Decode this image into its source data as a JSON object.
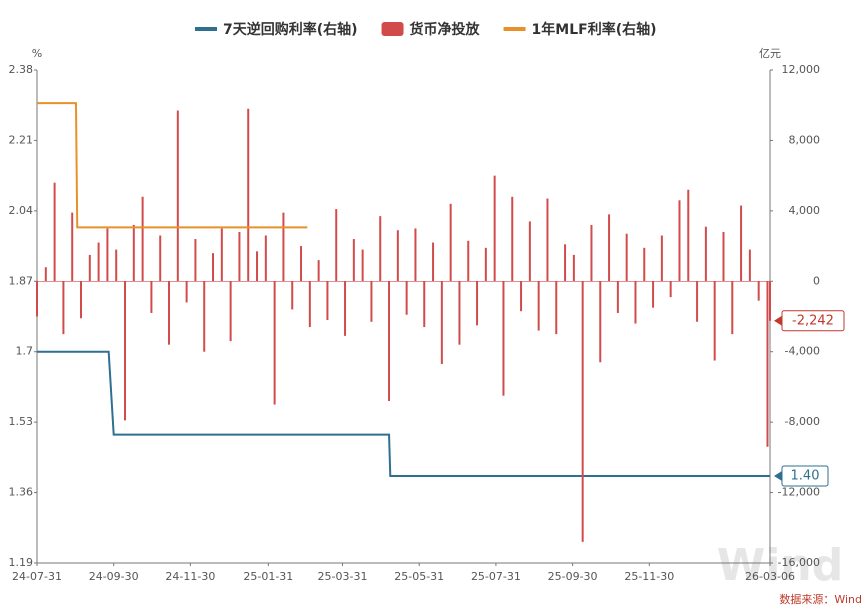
{
  "chart_data": {
    "type": "combo",
    "y_unit": "%",
    "y2_unit": "亿元",
    "source": "数据来源：Wind",
    "watermark": "Wind",
    "xlim": [
      "24-07-31",
      "26-03-06"
    ],
    "xticks": [
      "24-07-31",
      "24-09-30",
      "24-11-30",
      "25-01-31",
      "25-03-31",
      "25-05-31",
      "25-07-31",
      "25-09-30",
      "25-11-30",
      "26-03-06"
    ],
    "ylim": [
      1.19,
      2.38
    ],
    "yticks": [
      2.38,
      2.21,
      2.04,
      1.87,
      1.7,
      1.53,
      1.36,
      1.19
    ],
    "y2lim": [
      -16000,
      12000
    ],
    "y2ticks": [
      {
        "value": 12000,
        "label": "12,000"
      },
      {
        "value": 8000,
        "label": "8,000"
      },
      {
        "value": 4000,
        "label": "4,000"
      },
      0,
      {
        "value": -4000,
        "label": "-4,000"
      },
      {
        "value": -8000,
        "label": "-8,000"
      },
      {
        "value": -12000,
        "label": "-12,000"
      },
      {
        "value": -16000,
        "label": "-16,000"
      }
    ],
    "series": [
      {
        "name": "7天逆回购利率(右轴)",
        "type": "line",
        "color": "#2f6f8f",
        "x": [
          "24-07-31",
          "24-09-26",
          "24-09-30",
          "25-05-07",
          "25-05-08",
          "26-03-06"
        ],
        "values": [
          1.7,
          1.7,
          1.5,
          1.5,
          1.4,
          1.4
        ],
        "value_labels": [
          null,
          null,
          null,
          null,
          null,
          "1.40"
        ]
      },
      {
        "name": "货币净投放",
        "type": "bar",
        "axis": "y2",
        "color": "#d24b4b",
        "x": [
          "24-07-31",
          "24-08-07",
          "24-08-14",
          "24-08-21",
          "24-08-28",
          "24-09-04",
          "24-09-11",
          "24-09-18",
          "24-09-25",
          "24-10-02",
          "24-10-09",
          "24-10-16",
          "24-10-23",
          "24-10-30",
          "24-11-06",
          "24-11-13",
          "24-11-20",
          "24-11-27",
          "24-12-04",
          "24-12-11",
          "24-12-18",
          "24-12-25",
          "25-01-01",
          "25-01-08",
          "25-01-15",
          "25-01-22",
          "25-01-29",
          "25-02-05",
          "25-02-12",
          "25-02-19",
          "25-02-26",
          "25-03-05",
          "25-03-12",
          "25-03-19",
          "25-03-26",
          "25-04-02",
          "25-04-09",
          "25-04-16",
          "25-04-23",
          "25-04-30",
          "25-05-07",
          "25-05-14",
          "25-05-21",
          "25-05-28",
          "25-06-04",
          "25-06-11",
          "25-06-18",
          "25-06-25",
          "25-07-02",
          "25-07-09",
          "25-07-16",
          "25-07-23",
          "25-07-30",
          "25-08-06",
          "25-08-13",
          "25-08-20",
          "25-08-27",
          "25-09-03",
          "25-09-10",
          "25-09-17",
          "25-09-24",
          "25-10-01",
          "25-10-08",
          "25-10-15",
          "25-10-22",
          "25-10-29",
          "25-11-05",
          "25-11-12",
          "25-11-19",
          "25-11-26",
          "25-12-03",
          "25-12-10",
          "25-12-17",
          "25-12-24",
          "25-12-31",
          "26-01-07",
          "26-01-14",
          "26-01-21",
          "26-01-28",
          "26-02-04",
          "26-02-11",
          "26-02-18",
          "26-02-25",
          "26-03-04",
          "26-03-06"
        ],
        "values": [
          -2000,
          800,
          5600,
          -3000,
          3900,
          -2100,
          1500,
          2200,
          3000,
          1800,
          -7900,
          3200,
          4800,
          -1800,
          2600,
          -3600,
          9700,
          -1200,
          2400,
          -4000,
          1600,
          3000,
          -3400,
          2800,
          9800,
          1700,
          2600,
          -7000,
          3900,
          -1600,
          2000,
          -2600,
          1200,
          -2200,
          4100,
          -3100,
          2400,
          1800,
          -2300,
          3700,
          -6800,
          2900,
          -1900,
          3000,
          -2600,
          2200,
          -4700,
          4400,
          -3600,
          2300,
          -2500,
          1900,
          6000,
          -6500,
          4800,
          -1700,
          3400,
          -2800,
          4700,
          -3000,
          2100,
          1500,
          -14800,
          3200,
          -4600,
          3800,
          -1800,
          2700,
          -2400,
          1900,
          -1500,
          2600,
          -900,
          4600,
          5200,
          -2300,
          3100,
          -4500,
          2800,
          -3000,
          4300,
          1800,
          -1100,
          -9400,
          -2242
        ],
        "value_labels": [
          null,
          null,
          null,
          null,
          null,
          null,
          null,
          null,
          null,
          null,
          null,
          null,
          null,
          null,
          null,
          null,
          null,
          null,
          null,
          null,
          null,
          null,
          null,
          null,
          null,
          null,
          null,
          null,
          null,
          null,
          null,
          null,
          null,
          null,
          null,
          null,
          null,
          null,
          null,
          null,
          null,
          null,
          null,
          null,
          null,
          null,
          null,
          null,
          null,
          null,
          null,
          null,
          null,
          null,
          null,
          null,
          null,
          null,
          null,
          null,
          null,
          null,
          null,
          null,
          null,
          null,
          null,
          null,
          null,
          null,
          null,
          null,
          null,
          null,
          null,
          null,
          null,
          null,
          null,
          null,
          null,
          null,
          null,
          null,
          "-2,242"
        ]
      },
      {
        "name": "1年MLF利率(右轴)",
        "type": "line",
        "color": "#e8912a",
        "x": [
          "24-07-31",
          "24-08-31",
          "24-09-01",
          "25-03-03"
        ],
        "values": [
          2.3,
          2.3,
          2.0,
          2.0
        ]
      }
    ]
  }
}
